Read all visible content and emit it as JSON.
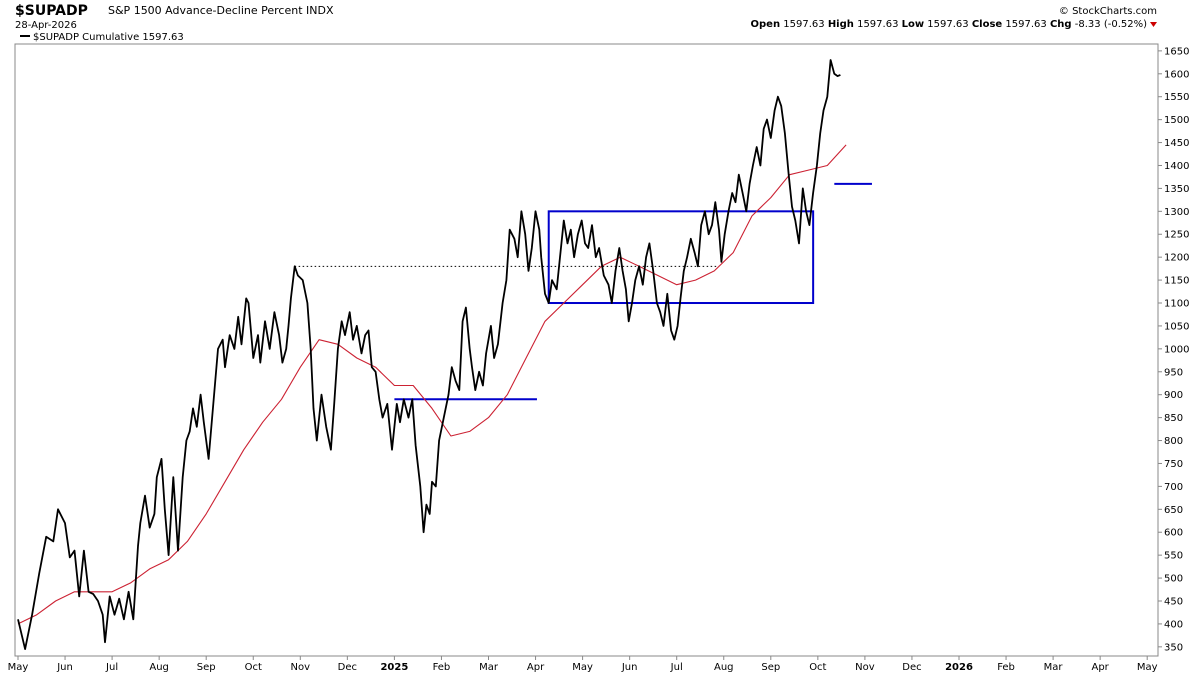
{
  "header": {
    "symbol": "$SUPADP",
    "name": "S&P 1500 Advance-Decline Percent",
    "exchange": "INDX",
    "date": "28-Apr-2026",
    "brand": "© StockCharts.com",
    "open_label": "Open",
    "open": "1597.63",
    "high_label": "High",
    "high": "1597.63",
    "low_label": "Low",
    "low": "1597.63",
    "close_label": "Close",
    "close": "1597.63",
    "chg_label": "Chg",
    "chg": "-8.33 (-0.52%)"
  },
  "legend": {
    "label": "$SUPADP Cumulative 1597.63"
  },
  "colors": {
    "price": "#000000",
    "ma": "#cc2233",
    "box": "#0000cc",
    "ref": "#000000",
    "chg_arrow": "#cc0000"
  },
  "chart_data": {
    "type": "line",
    "y_range": [
      330,
      1665
    ],
    "y_ticks": [
      350,
      400,
      450,
      500,
      550,
      600,
      650,
      700,
      750,
      800,
      850,
      900,
      950,
      1000,
      1050,
      1100,
      1150,
      1200,
      1250,
      1300,
      1350,
      1400,
      1450,
      1500,
      1550,
      1600,
      1650
    ],
    "x_ticks": [
      {
        "label": "May",
        "year": false
      },
      {
        "label": "Jun",
        "year": false
      },
      {
        "label": "Jul",
        "year": false
      },
      {
        "label": "Aug",
        "year": false
      },
      {
        "label": "Sep",
        "year": false
      },
      {
        "label": "Oct",
        "year": false
      },
      {
        "label": "Nov",
        "year": false
      },
      {
        "label": "Dec",
        "year": false
      },
      {
        "label": "2025",
        "year": true
      },
      {
        "label": "Feb",
        "year": false
      },
      {
        "label": "Mar",
        "year": false
      },
      {
        "label": "Apr",
        "year": false
      },
      {
        "label": "May",
        "year": false
      },
      {
        "label": "Jun",
        "year": false
      },
      {
        "label": "Jul",
        "year": false
      },
      {
        "label": "Aug",
        "year": false
      },
      {
        "label": "Sep",
        "year": false
      },
      {
        "label": "Oct",
        "year": false
      },
      {
        "label": "Nov",
        "year": false
      },
      {
        "label": "Dec",
        "year": false
      },
      {
        "label": "2026",
        "year": true
      },
      {
        "label": "Feb",
        "year": false
      },
      {
        "label": "Mar",
        "year": false
      },
      {
        "label": "Apr",
        "year": false
      },
      {
        "label": "May",
        "year": false
      }
    ],
    "grid": false,
    "series": [
      {
        "name": "$SUPADP Cumulative",
        "role": "price",
        "values": [
          [
            0,
            410
          ],
          [
            0.15,
            345
          ],
          [
            0.3,
            420
          ],
          [
            0.45,
            510
          ],
          [
            0.6,
            590
          ],
          [
            0.75,
            580
          ],
          [
            0.85,
            650
          ],
          [
            1.0,
            620
          ],
          [
            1.1,
            545
          ],
          [
            1.2,
            560
          ],
          [
            1.3,
            460
          ],
          [
            1.4,
            560
          ],
          [
            1.5,
            470
          ],
          [
            1.6,
            465
          ],
          [
            1.7,
            450
          ],
          [
            1.8,
            420
          ],
          [
            1.85,
            360
          ],
          [
            1.95,
            460
          ],
          [
            2.05,
            420
          ],
          [
            2.15,
            455
          ],
          [
            2.25,
            410
          ],
          [
            2.35,
            470
          ],
          [
            2.45,
            410
          ],
          [
            2.55,
            570
          ],
          [
            2.6,
            620
          ],
          [
            2.7,
            680
          ],
          [
            2.8,
            610
          ],
          [
            2.9,
            640
          ],
          [
            2.95,
            720
          ],
          [
            3.05,
            760
          ],
          [
            3.12,
            650
          ],
          [
            3.2,
            550
          ],
          [
            3.3,
            720
          ],
          [
            3.4,
            560
          ],
          [
            3.5,
            720
          ],
          [
            3.58,
            800
          ],
          [
            3.65,
            820
          ],
          [
            3.72,
            870
          ],
          [
            3.8,
            830
          ],
          [
            3.88,
            900
          ],
          [
            3.95,
            840
          ],
          [
            4.05,
            760
          ],
          [
            4.15,
            880
          ],
          [
            4.25,
            1000
          ],
          [
            4.35,
            1020
          ],
          [
            4.4,
            960
          ],
          [
            4.5,
            1030
          ],
          [
            4.6,
            1000
          ],
          [
            4.68,
            1070
          ],
          [
            4.75,
            1010
          ],
          [
            4.85,
            1110
          ],
          [
            4.9,
            1100
          ],
          [
            5.0,
            980
          ],
          [
            5.1,
            1030
          ],
          [
            5.15,
            970
          ],
          [
            5.25,
            1060
          ],
          [
            5.35,
            1000
          ],
          [
            5.45,
            1080
          ],
          [
            5.55,
            1030
          ],
          [
            5.62,
            970
          ],
          [
            5.7,
            1000
          ],
          [
            5.75,
            1050
          ],
          [
            5.8,
            1110
          ],
          [
            5.88,
            1180
          ],
          [
            5.95,
            1160
          ],
          [
            6.05,
            1150
          ],
          [
            6.15,
            1100
          ],
          [
            6.22,
            1000
          ],
          [
            6.28,
            870
          ],
          [
            6.35,
            800
          ],
          [
            6.45,
            900
          ],
          [
            6.55,
            830
          ],
          [
            6.65,
            780
          ],
          [
            6.72,
            880
          ],
          [
            6.8,
            1000
          ],
          [
            6.88,
            1060
          ],
          [
            6.95,
            1030
          ],
          [
            7.05,
            1080
          ],
          [
            7.12,
            1020
          ],
          [
            7.2,
            1050
          ],
          [
            7.3,
            990
          ],
          [
            7.38,
            1030
          ],
          [
            7.45,
            1040
          ],
          [
            7.52,
            960
          ],
          [
            7.6,
            950
          ],
          [
            7.68,
            890
          ],
          [
            7.75,
            850
          ],
          [
            7.85,
            880
          ],
          [
            7.95,
            780
          ],
          [
            8.05,
            880
          ],
          [
            8.12,
            840
          ],
          [
            8.2,
            890
          ],
          [
            8.3,
            850
          ],
          [
            8.38,
            890
          ],
          [
            8.45,
            790
          ],
          [
            8.55,
            700
          ],
          [
            8.62,
            600
          ],
          [
            8.68,
            660
          ],
          [
            8.75,
            640
          ],
          [
            8.8,
            710
          ],
          [
            8.88,
            700
          ],
          [
            8.95,
            800
          ],
          [
            9.05,
            850
          ],
          [
            9.15,
            900
          ],
          [
            9.22,
            960
          ],
          [
            9.3,
            930
          ],
          [
            9.38,
            910
          ],
          [
            9.45,
            1060
          ],
          [
            9.52,
            1090
          ],
          [
            9.6,
            1000
          ],
          [
            9.65,
            960
          ],
          [
            9.72,
            910
          ],
          [
            9.8,
            950
          ],
          [
            9.88,
            920
          ],
          [
            9.95,
            990
          ],
          [
            10.05,
            1050
          ],
          [
            10.12,
            980
          ],
          [
            10.2,
            1010
          ],
          [
            10.3,
            1100
          ],
          [
            10.38,
            1150
          ],
          [
            10.45,
            1260
          ],
          [
            10.55,
            1240
          ],
          [
            10.62,
            1200
          ],
          [
            10.7,
            1300
          ],
          [
            10.78,
            1250
          ],
          [
            10.85,
            1170
          ],
          [
            10.92,
            1220
          ],
          [
            11.0,
            1300
          ],
          [
            11.08,
            1260
          ],
          [
            11.12,
            1200
          ],
          [
            11.2,
            1120
          ],
          [
            11.28,
            1100
          ],
          [
            11.35,
            1150
          ],
          [
            11.45,
            1130
          ],
          [
            11.52,
            1200
          ],
          [
            11.6,
            1280
          ],
          [
            11.68,
            1230
          ],
          [
            11.75,
            1260
          ],
          [
            11.82,
            1200
          ],
          [
            11.9,
            1250
          ],
          [
            11.98,
            1280
          ],
          [
            12.05,
            1230
          ],
          [
            12.12,
            1220
          ],
          [
            12.2,
            1270
          ],
          [
            12.28,
            1200
          ],
          [
            12.35,
            1220
          ],
          [
            12.45,
            1160
          ],
          [
            12.55,
            1140
          ],
          [
            12.62,
            1100
          ],
          [
            12.7,
            1170
          ],
          [
            12.78,
            1220
          ],
          [
            12.85,
            1170
          ],
          [
            12.92,
            1130
          ],
          [
            12.98,
            1060
          ],
          [
            13.05,
            1100
          ],
          [
            13.12,
            1150
          ],
          [
            13.2,
            1180
          ],
          [
            13.28,
            1140
          ],
          [
            13.35,
            1200
          ],
          [
            13.42,
            1230
          ],
          [
            13.5,
            1170
          ],
          [
            13.58,
            1100
          ],
          [
            13.65,
            1080
          ],
          [
            13.72,
            1050
          ],
          [
            13.8,
            1120
          ],
          [
            13.88,
            1040
          ],
          [
            13.95,
            1020
          ],
          [
            14.02,
            1050
          ],
          [
            14.08,
            1110
          ],
          [
            14.15,
            1170
          ],
          [
            14.22,
            1200
          ],
          [
            14.3,
            1240
          ],
          [
            14.38,
            1210
          ],
          [
            14.45,
            1180
          ],
          [
            14.52,
            1270
          ],
          [
            14.6,
            1300
          ],
          [
            14.68,
            1250
          ],
          [
            14.75,
            1270
          ],
          [
            14.82,
            1320
          ],
          [
            14.9,
            1260
          ],
          [
            14.95,
            1190
          ],
          [
            15.02,
            1250
          ],
          [
            15.1,
            1300
          ],
          [
            15.18,
            1340
          ],
          [
            15.25,
            1320
          ],
          [
            15.32,
            1380
          ],
          [
            15.4,
            1340
          ],
          [
            15.48,
            1300
          ],
          [
            15.55,
            1360
          ],
          [
            15.62,
            1400
          ],
          [
            15.7,
            1440
          ],
          [
            15.78,
            1400
          ],
          [
            15.85,
            1480
          ],
          [
            15.92,
            1500
          ],
          [
            16.0,
            1460
          ],
          [
            16.08,
            1520
          ],
          [
            16.15,
            1550
          ],
          [
            16.22,
            1530
          ],
          [
            16.3,
            1470
          ],
          [
            16.38,
            1380
          ],
          [
            16.45,
            1310
          ],
          [
            16.52,
            1280
          ],
          [
            16.6,
            1230
          ],
          [
            16.68,
            1350
          ],
          [
            16.75,
            1300
          ],
          [
            16.82,
            1270
          ],
          [
            16.9,
            1340
          ],
          [
            16.98,
            1400
          ],
          [
            17.05,
            1470
          ],
          [
            17.12,
            1520
          ],
          [
            17.2,
            1550
          ],
          [
            17.27,
            1630
          ],
          [
            17.35,
            1600
          ],
          [
            17.42,
            1595
          ],
          [
            17.48,
            1597.63
          ]
        ]
      },
      {
        "name": "Moving Average",
        "role": "ma",
        "values": [
          [
            0,
            400
          ],
          [
            0.4,
            420
          ],
          [
            0.8,
            450
          ],
          [
            1.2,
            470
          ],
          [
            1.6,
            470
          ],
          [
            2.0,
            470
          ],
          [
            2.4,
            490
          ],
          [
            2.8,
            520
          ],
          [
            3.2,
            540
          ],
          [
            3.6,
            580
          ],
          [
            4.0,
            640
          ],
          [
            4.4,
            710
          ],
          [
            4.8,
            780
          ],
          [
            5.2,
            840
          ],
          [
            5.6,
            890
          ],
          [
            6.0,
            960
          ],
          [
            6.4,
            1020
          ],
          [
            6.8,
            1010
          ],
          [
            7.2,
            980
          ],
          [
            7.6,
            960
          ],
          [
            8.0,
            920
          ],
          [
            8.4,
            920
          ],
          [
            8.8,
            870
          ],
          [
            9.2,
            810
          ],
          [
            9.6,
            820
          ],
          [
            10.0,
            850
          ],
          [
            10.4,
            900
          ],
          [
            10.8,
            980
          ],
          [
            11.2,
            1060
          ],
          [
            11.6,
            1100
          ],
          [
            12.0,
            1140
          ],
          [
            12.4,
            1180
          ],
          [
            12.8,
            1200
          ],
          [
            13.2,
            1180
          ],
          [
            13.6,
            1160
          ],
          [
            14.0,
            1140
          ],
          [
            14.4,
            1150
          ],
          [
            14.8,
            1170
          ],
          [
            15.2,
            1210
          ],
          [
            15.6,
            1290
          ],
          [
            16.0,
            1330
          ],
          [
            16.4,
            1380
          ],
          [
            16.8,
            1390
          ],
          [
            17.2,
            1400
          ],
          [
            17.6,
            1445
          ]
        ]
      }
    ],
    "annotations": [
      {
        "type": "hline_dotted",
        "y": 1180,
        "x_start": 5.88,
        "x_end": 14.9
      },
      {
        "type": "hline",
        "y": 890,
        "x_start": 8.0,
        "x_end": 11.03
      },
      {
        "type": "rect",
        "x_start": 11.28,
        "x_end": 16.9,
        "y_bottom": 1100,
        "y_top": 1300
      },
      {
        "type": "hline",
        "y": 1360,
        "x_start": 17.35,
        "x_end": 18.15
      }
    ]
  }
}
